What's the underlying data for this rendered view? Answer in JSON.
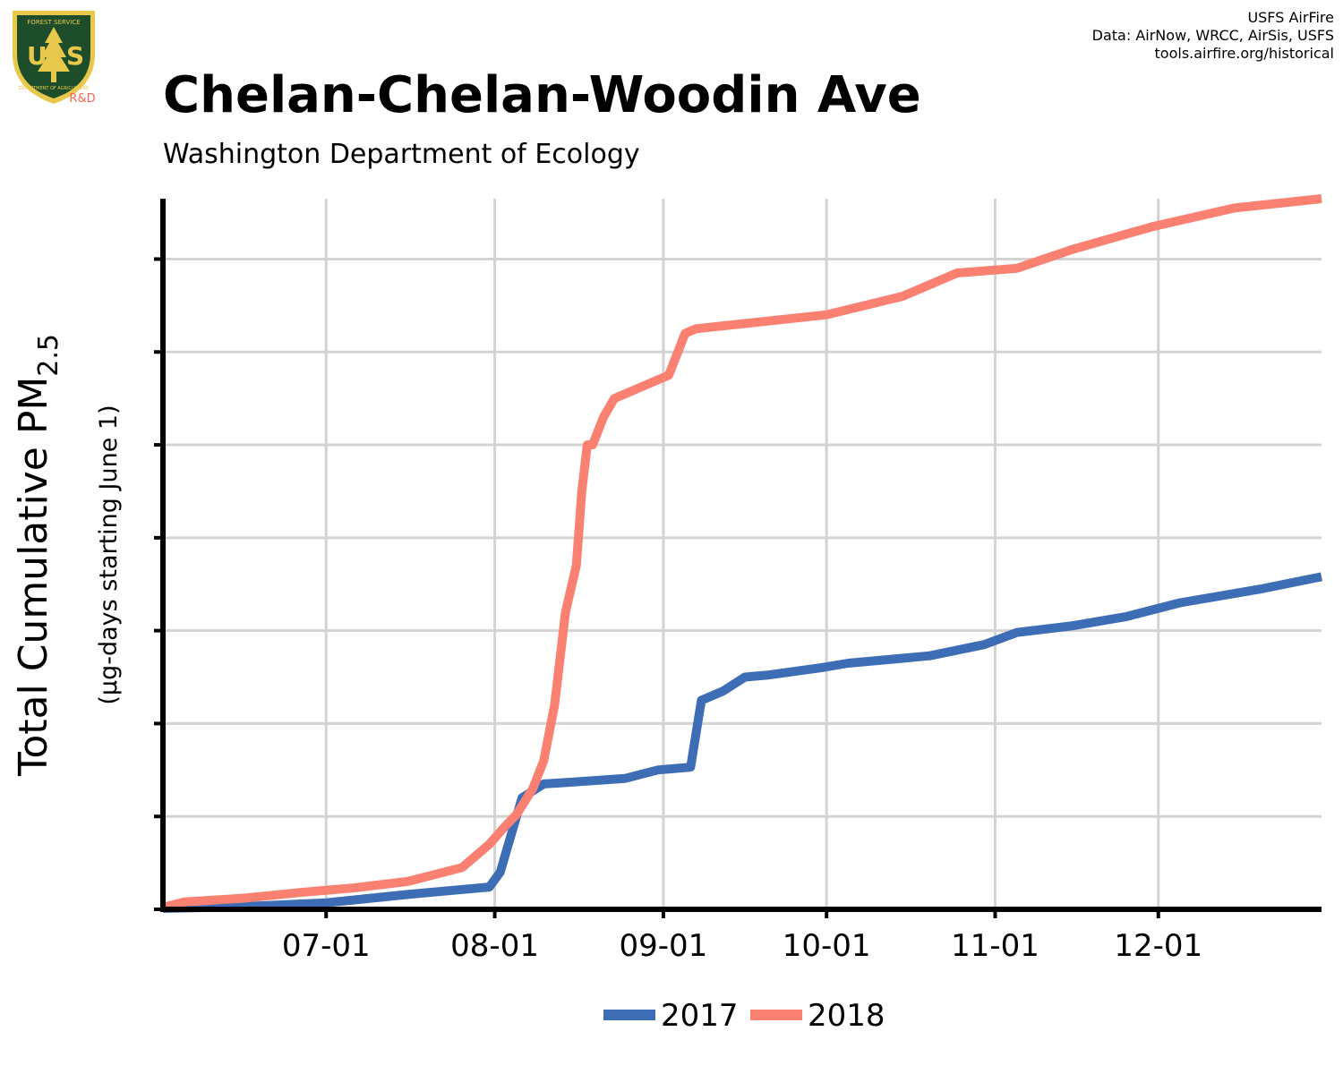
{
  "logo": {
    "top_text": "FOREST SERVICE",
    "letters": "US",
    "bottom_text": "DEPARTMENT OF AGRICULTURE",
    "tag": "R&D"
  },
  "credits": {
    "line1": "USFS AirFire",
    "line2": "Data: AirNow, WRCC, AirSis, USFS",
    "line3": "tools.airfire.org/historical"
  },
  "colors": {
    "series_2017": "#3d6db5",
    "series_2018": "#fa8072",
    "grid": "#d3d3d3",
    "axis": "#000000",
    "logo_green": "#1d4d2b",
    "logo_gold": "#e8c84a",
    "rd": "#f06a55"
  },
  "chart_data": {
    "type": "line",
    "title": "Chelan-Chelan-Woodin Ave",
    "subtitle": "Washington Department of Ecology",
    "ylabel": "Total Cumulative PM",
    "ylabel_sub": "2.5",
    "ylabel_units": "(µg-days starting June 1)",
    "xlabel": "",
    "x_tick_labels": [
      "07-01",
      "08-01",
      "09-01",
      "10-01",
      "11-01",
      "12-01"
    ],
    "x_tick_dates": [
      "2018-07-01",
      "2018-08-01",
      "2018-09-01",
      "2018-10-01",
      "2018-11-01",
      "2018-12-01"
    ],
    "xlim": [
      "2018-06-01",
      "2018-12-31"
    ],
    "ylim": [
      0,
      7.65
    ],
    "y_ticks": [
      0,
      1,
      2,
      3,
      4,
      5,
      6,
      7
    ],
    "y_tick_labels_shown": false,
    "grid": true,
    "legend_position": "bottom",
    "series": [
      {
        "name": "2017",
        "color": "#3d6db5",
        "x": [
          "2018-06-01",
          "2018-06-16",
          "2018-07-01",
          "2018-07-06",
          "2018-07-16",
          "2018-07-31",
          "2018-08-02",
          "2018-08-04",
          "2018-08-06",
          "2018-08-10",
          "2018-08-13",
          "2018-08-25",
          "2018-08-31",
          "2018-09-06",
          "2018-09-08",
          "2018-09-12",
          "2018-09-16",
          "2018-09-20",
          "2018-09-30",
          "2018-10-05",
          "2018-10-20",
          "2018-10-30",
          "2018-11-05",
          "2018-11-15",
          "2018-11-25",
          "2018-12-05",
          "2018-12-20",
          "2018-12-31"
        ],
        "values": [
          0.01,
          0.03,
          0.07,
          0.1,
          0.16,
          0.24,
          0.4,
          0.8,
          1.2,
          1.35,
          1.36,
          1.41,
          1.5,
          1.53,
          2.25,
          2.35,
          2.5,
          2.52,
          2.6,
          2.65,
          2.73,
          2.85,
          2.98,
          3.05,
          3.15,
          3.3,
          3.45,
          3.58
        ]
      },
      {
        "name": "2018",
        "color": "#fa8072",
        "x": [
          "2018-06-01",
          "2018-06-05",
          "2018-06-16",
          "2018-06-26",
          "2018-07-06",
          "2018-07-16",
          "2018-07-26",
          "2018-07-31",
          "2018-08-03",
          "2018-08-05",
          "2018-08-08",
          "2018-08-10",
          "2018-08-12",
          "2018-08-14",
          "2018-08-16",
          "2018-08-17",
          "2018-08-18",
          "2018-08-19",
          "2018-08-21",
          "2018-08-23",
          "2018-08-25",
          "2018-08-27",
          "2018-09-02",
          "2018-09-05",
          "2018-09-07",
          "2018-09-15",
          "2018-10-01",
          "2018-10-15",
          "2018-10-25",
          "2018-11-05",
          "2018-11-15",
          "2018-11-30",
          "2018-12-15",
          "2018-12-31"
        ],
        "values": [
          0.02,
          0.08,
          0.12,
          0.18,
          0.23,
          0.3,
          0.45,
          0.7,
          0.9,
          1.02,
          1.3,
          1.6,
          2.2,
          3.2,
          3.7,
          4.5,
          5.0,
          5.0,
          5.3,
          5.5,
          5.55,
          5.6,
          5.75,
          6.2,
          6.25,
          6.3,
          6.4,
          6.6,
          6.85,
          6.9,
          7.1,
          7.35,
          7.55,
          7.65
        ]
      }
    ]
  }
}
